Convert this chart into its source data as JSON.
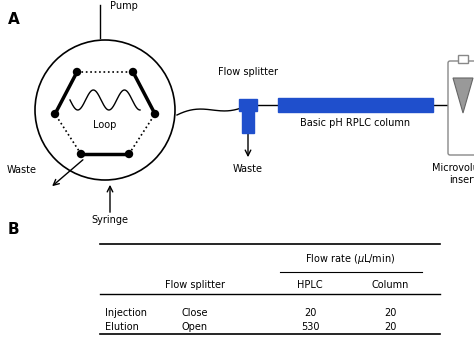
{
  "panel_a_label": "A",
  "panel_b_label": "B",
  "labels": {
    "syringe": "Syringe",
    "waste_top": "Waste",
    "loop": "Loop",
    "pump": "Pump",
    "flow_splitter": "Flow splitter",
    "waste_bottom": "Waste",
    "column": "Basic pH RPLC column",
    "microvolume": "Microvolume\ninsert"
  },
  "table": {
    "row1": [
      "Injection",
      "Close",
      "20",
      "20"
    ],
    "row2": [
      "Elution",
      "Open",
      "530",
      "20"
    ]
  },
  "blue_color": "#1F4FCC",
  "black": "#000000"
}
